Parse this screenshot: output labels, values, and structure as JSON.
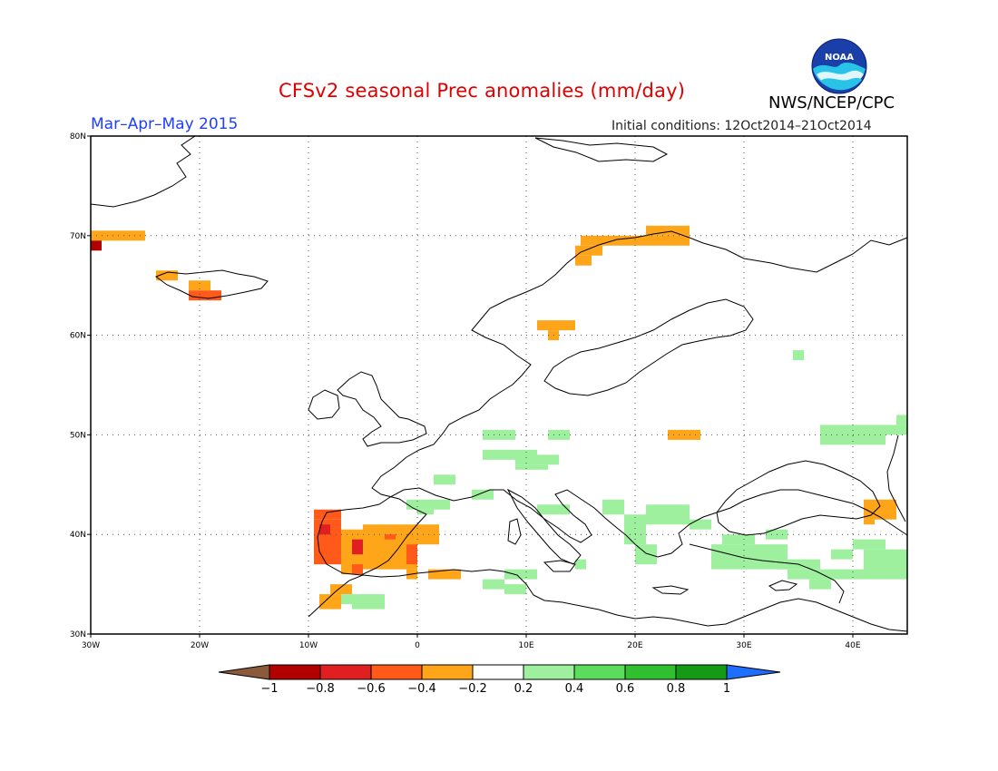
{
  "title": "CFSv2 seasonal Prec anomalies (mm/day)",
  "period": "Mar–Apr–May 2015",
  "initial_conditions": "Initial conditions: 12Oct2014–21Oct2014",
  "agency": "NWS/NCEP/CPC",
  "logo_text": "NOAA",
  "map": {
    "lon_range": [
      -30,
      45
    ],
    "lat_range": [
      30,
      80
    ],
    "lon_ticks": [
      {
        "lon": -30,
        "label": "30W"
      },
      {
        "lon": -20,
        "label": "20W"
      },
      {
        "lon": -10,
        "label": "10W"
      },
      {
        "lon": 0,
        "label": "0"
      },
      {
        "lon": 10,
        "label": "10E"
      },
      {
        "lon": 20,
        "label": "20E"
      },
      {
        "lon": 30,
        "label": "30E"
      },
      {
        "lon": 40,
        "label": "40E"
      }
    ],
    "lat_ticks": [
      {
        "lat": 30,
        "label": "30N"
      },
      {
        "lat": 40,
        "label": "40N"
      },
      {
        "lat": 50,
        "label": "50N"
      },
      {
        "lat": 60,
        "label": "60N"
      },
      {
        "lat": 70,
        "label": "70N"
      },
      {
        "lat": 80,
        "label": "80N"
      }
    ],
    "grid_lines": "dotted every 10 degrees"
  },
  "colorbar": {
    "labels": [
      "−1",
      "−0.8",
      "−0.6",
      "−0.4",
      "−0.2",
      "0.2",
      "0.4",
      "0.6",
      "0.8",
      "1"
    ],
    "low_end_color": "#8b5a3c",
    "high_end_color": "#1e6fff",
    "colors": [
      "#b00000",
      "#e02020",
      "#ff5a1a",
      "#ffa51a",
      "#ffffff",
      "#9ef09e",
      "#5cdc5c",
      "#2fbf2f",
      "#149a14"
    ]
  },
  "anomaly_cells": [
    {
      "lon0": -30,
      "lat0": 69.5,
      "lon1": -25,
      "lat1": 70.5,
      "value": -0.3
    },
    {
      "lon0": -30,
      "lat0": 68.5,
      "lon1": -29,
      "lat1": 69.5,
      "value": -0.9
    },
    {
      "lon0": -24,
      "lat0": 65.5,
      "lon1": -22,
      "lat1": 66.5,
      "value": -0.3
    },
    {
      "lon0": -21,
      "lat0": 64.5,
      "lon1": -19,
      "lat1": 65.5,
      "value": -0.3
    },
    {
      "lon0": -21,
      "lat0": 63.5,
      "lon1": -18,
      "lat1": 64.5,
      "value": -0.5
    },
    {
      "lon0": 15,
      "lat0": 69,
      "lon1": 25,
      "lat1": 70,
      "value": -0.3
    },
    {
      "lon0": 21,
      "lat0": 70,
      "lon1": 25,
      "lat1": 71,
      "value": -0.3
    },
    {
      "lon0": 14.5,
      "lat0": 68,
      "lon1": 17,
      "lat1": 69,
      "value": -0.3
    },
    {
      "lon0": 14.5,
      "lat0": 67,
      "lon1": 16,
      "lat1": 68,
      "value": -0.3
    },
    {
      "lon0": 11,
      "lat0": 60.5,
      "lon1": 14.5,
      "lat1": 61.5,
      "value": -0.3
    },
    {
      "lon0": 12,
      "lat0": 59.5,
      "lon1": 13,
      "lat1": 60.5,
      "value": -0.3
    },
    {
      "lon0": 23,
      "lat0": 49.5,
      "lon1": 26,
      "lat1": 50.5,
      "value": -0.3
    },
    {
      "lon0": 41,
      "lat0": 41.5,
      "lon1": 44,
      "lat1": 43.5,
      "value": -0.3
    },
    {
      "lon0": 41,
      "lat0": 41,
      "lon1": 42,
      "lat1": 41.5,
      "value": -0.3
    },
    {
      "lon0": -9.5,
      "lat0": 41.5,
      "lon1": -7,
      "lat1": 42.5,
      "value": -0.5
    },
    {
      "lon0": -9.5,
      "lat0": 37,
      "lon1": -7,
      "lat1": 41.5,
      "value": -0.55
    },
    {
      "lon0": -9,
      "lat0": 40,
      "lon1": -8,
      "lat1": 41,
      "value": -0.7
    },
    {
      "lon0": -7,
      "lat0": 36,
      "lon1": -5,
      "lat1": 40.5,
      "value": -0.35
    },
    {
      "lon0": -6,
      "lat0": 38,
      "lon1": -4,
      "lat1": 39.5,
      "value": -0.65
    },
    {
      "lon0": -6,
      "lat0": 36,
      "lon1": -5,
      "lat1": 37,
      "value": -0.5
    },
    {
      "lon0": -5,
      "lat0": 36.5,
      "lon1": 0,
      "lat1": 41,
      "value": -0.3
    },
    {
      "lon0": -1,
      "lat0": 37,
      "lon1": 0,
      "lat1": 39,
      "value": -0.5
    },
    {
      "lon0": 0,
      "lat0": 39,
      "lon1": 2,
      "lat1": 41,
      "value": -0.3
    },
    {
      "lon0": -3,
      "lat0": 39.5,
      "lon1": -2,
      "lat1": 40,
      "value": -0.5
    },
    {
      "lon0": -1,
      "lat0": 35.5,
      "lon1": 0,
      "lat1": 36.5,
      "value": -0.3
    },
    {
      "lon0": 1,
      "lat0": 35.5,
      "lon1": 4,
      "lat1": 36.5,
      "value": -0.3
    },
    {
      "lon0": -8,
      "lat0": 34,
      "lon1": -6,
      "lat1": 35,
      "value": -0.3
    },
    {
      "lon0": -9,
      "lat0": 32.5,
      "lon1": -7,
      "lat1": 34,
      "value": -0.3
    },
    {
      "lon0": -6,
      "lat0": 32.5,
      "lon1": -3,
      "lat1": 34,
      "value": 0.3
    },
    {
      "lon0": -7,
      "lat0": 33,
      "lon1": -6,
      "lat1": 34,
      "value": 0.3
    },
    {
      "lon0": 6,
      "lat0": 49.5,
      "lon1": 9,
      "lat1": 50.5,
      "value": 0.3
    },
    {
      "lon0": 12,
      "lat0": 49.5,
      "lon1": 14,
      "lat1": 50.5,
      "value": 0.3
    },
    {
      "lon0": 9,
      "lat0": 47,
      "lon1": 13,
      "lat1": 48,
      "value": 0.3
    },
    {
      "lon0": 6,
      "lat0": 47.5,
      "lon1": 11,
      "lat1": 48.5,
      "value": 0.3
    },
    {
      "lon0": 9,
      "lat0": 46.5,
      "lon1": 12,
      "lat1": 47,
      "value": 0.3
    },
    {
      "lon0": 1.5,
      "lat0": 45,
      "lon1": 3.5,
      "lat1": 46,
      "value": 0.3
    },
    {
      "lon0": 5,
      "lat0": 43.5,
      "lon1": 7,
      "lat1": 44.5,
      "value": 0.3
    },
    {
      "lon0": -1,
      "lat0": 42.5,
      "lon1": 3,
      "lat1": 43.5,
      "value": 0.3
    },
    {
      "lon0": 0,
      "lat0": 42,
      "lon1": 1.5,
      "lat1": 42.5,
      "value": 0.3
    },
    {
      "lon0": 11,
      "lat0": 42,
      "lon1": 14,
      "lat1": 43,
      "value": 0.3
    },
    {
      "lon0": 17,
      "lat0": 42,
      "lon1": 19,
      "lat1": 43.5,
      "value": 0.3
    },
    {
      "lon0": 21,
      "lat0": 41,
      "lon1": 25,
      "lat1": 43,
      "value": 0.3
    },
    {
      "lon0": 19,
      "lat0": 39,
      "lon1": 21,
      "lat1": 42,
      "value": 0.3
    },
    {
      "lon0": 20,
      "lat0": 37,
      "lon1": 22,
      "lat1": 39,
      "value": 0.3
    },
    {
      "lon0": 25,
      "lat0": 40.5,
      "lon1": 27,
      "lat1": 41.5,
      "value": 0.3
    },
    {
      "lon0": 14.5,
      "lat0": 36.5,
      "lon1": 15.5,
      "lat1": 37.5,
      "value": 0.3
    },
    {
      "lon0": 8,
      "lat0": 35.5,
      "lon1": 11,
      "lat1": 36.5,
      "value": 0.3
    },
    {
      "lon0": 6,
      "lat0": 34.5,
      "lon1": 8,
      "lat1": 35.5,
      "value": 0.3
    },
    {
      "lon0": 8,
      "lat0": 34,
      "lon1": 10,
      "lat1": 35,
      "value": 0.3
    },
    {
      "lon0": 27,
      "lat0": 36.5,
      "lon1": 34,
      "lat1": 39,
      "value": 0.3
    },
    {
      "lon0": 28,
      "lat0": 39,
      "lon1": 31,
      "lat1": 40,
      "value": 0.3
    },
    {
      "lon0": 32,
      "lat0": 39.5,
      "lon1": 34,
      "lat1": 40.5,
      "value": 0.3
    },
    {
      "lon0": 33,
      "lat0": 36.5,
      "lon1": 37,
      "lat1": 37.5,
      "value": 0.3
    },
    {
      "lon0": 34,
      "lat0": 35.5,
      "lon1": 36,
      "lat1": 36.5,
      "value": 0.3
    },
    {
      "lon0": 36,
      "lat0": 34.5,
      "lon1": 38,
      "lat1": 35.5,
      "value": 0.3
    },
    {
      "lon0": 36,
      "lat0": 35.5,
      "lon1": 41,
      "lat1": 36.5,
      "value": 0.3
    },
    {
      "lon0": 38,
      "lat0": 37.5,
      "lon1": 40,
      "lat1": 38.5,
      "value": 0.3
    },
    {
      "lon0": 40,
      "lat0": 38.5,
      "lon1": 43,
      "lat1": 39.5,
      "value": 0.3
    },
    {
      "lon0": 41,
      "lat0": 35.5,
      "lon1": 45,
      "lat1": 38.5,
      "value": 0.3
    },
    {
      "lon0": 34.5,
      "lat0": 57.5,
      "lon1": 35.5,
      "lat1": 58.5,
      "value": 0.3
    },
    {
      "lon0": 37,
      "lat0": 49,
      "lon1": 43,
      "lat1": 51,
      "value": 0.3
    },
    {
      "lon0": 43,
      "lat0": 50,
      "lon1": 45,
      "lat1": 51,
      "value": 0.3
    },
    {
      "lon0": 44,
      "lat0": 51,
      "lon1": 45,
      "lat1": 52,
      "value": 0.3
    }
  ]
}
